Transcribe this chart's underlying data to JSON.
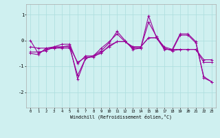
{
  "xlabel": "Windchill (Refroidissement éolien,°C)",
  "bg_color": "#cff0f0",
  "grid_color": "#aadddd",
  "line_color": "#990099",
  "xlim": [
    -0.5,
    23.5
  ],
  "ylim": [
    -2.6,
    1.4
  ],
  "yticks": [
    1,
    0,
    -1,
    -2
  ],
  "xticks": [
    0,
    1,
    2,
    3,
    4,
    5,
    6,
    7,
    8,
    9,
    10,
    11,
    12,
    13,
    14,
    15,
    16,
    17,
    18,
    19,
    20,
    21,
    22,
    23
  ],
  "series": [
    [
      0.0,
      -0.5,
      -0.35,
      -0.3,
      -0.25,
      -0.2,
      -1.5,
      -0.7,
      -0.6,
      -0.4,
      -0.1,
      0.35,
      0.0,
      -0.35,
      -0.3,
      0.95,
      0.1,
      -0.35,
      -0.35,
      0.25,
      0.25,
      -0.05,
      -1.45,
      -1.6
    ],
    [
      -0.25,
      -0.3,
      -0.3,
      -0.25,
      -0.25,
      -0.25,
      -0.85,
      -0.65,
      -0.65,
      -0.45,
      -0.25,
      -0.05,
      -0.05,
      -0.25,
      -0.25,
      0.1,
      0.1,
      -0.25,
      -0.35,
      -0.35,
      -0.35,
      -0.35,
      -0.75,
      -0.75
    ],
    [
      -0.5,
      -0.55,
      -0.3,
      -0.3,
      -0.3,
      -0.3,
      -1.35,
      -0.7,
      -0.6,
      -0.3,
      -0.05,
      0.25,
      -0.05,
      -0.3,
      -0.3,
      0.7,
      0.15,
      -0.3,
      -0.4,
      0.2,
      0.2,
      -0.1,
      -1.4,
      -1.6
    ],
    [
      -0.45,
      -0.45,
      -0.4,
      -0.25,
      -0.15,
      -0.15,
      -0.9,
      -0.6,
      -0.6,
      -0.5,
      -0.2,
      -0.05,
      -0.05,
      -0.25,
      -0.25,
      0.1,
      0.1,
      -0.3,
      -0.4,
      -0.35,
      -0.35,
      -0.35,
      -0.85,
      -0.85
    ]
  ]
}
